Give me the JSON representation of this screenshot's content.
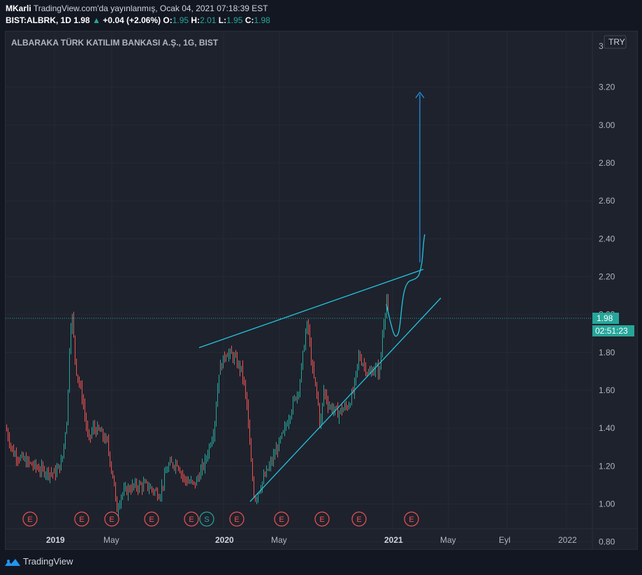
{
  "header": {
    "author": "MKarli",
    "published": "TradingView.com'da yayınlanmış, Ocak 04, 2021 07:18:39 EST",
    "symbol": "BIST:ALBRK, 1D",
    "last": "1.98",
    "change_arrow": "▲",
    "change": "+0.04 (+2.06%)",
    "o_label": "O:",
    "o_value": "1.95",
    "h_label": "H:",
    "h_value": "2.01",
    "l_label": "L:",
    "l_value": "1.95",
    "c_label": "C:",
    "c_value": "1.98"
  },
  "chart": {
    "title": "ALBARAKA TÜRK KATILIM BANKASI A.Ş., 1G, BIST",
    "currency": "TRY",
    "price_tag": "1.98",
    "countdown": "02:51:23",
    "top_tick_partial": "3"
  },
  "chart_data": {
    "type": "candlestick",
    "title": "ALBARAKA TÜRK KATILIM BANKASI A.Ş., 1G, BIST",
    "y_ticks": [
      "3.20",
      "3.00",
      "2.80",
      "2.60",
      "2.40",
      "2.20",
      "2.00",
      "1.80",
      "1.60",
      "1.40",
      "1.20",
      "1.00",
      "0.80"
    ],
    "y_range": [
      0.78,
      3.42
    ],
    "x_ticks": [
      {
        "label": "2019",
        "bold": true
      },
      {
        "label": "May",
        "bold": false
      },
      {
        "label": "2020",
        "bold": true
      },
      {
        "label": "May",
        "bold": false
      },
      {
        "label": "2021",
        "bold": true
      },
      {
        "label": "May",
        "bold": false
      },
      {
        "label": "Eyl",
        "bold": false
      },
      {
        "label": "2022",
        "bold": false
      }
    ],
    "last_price": 1.98,
    "price_path": [
      [
        0,
        1.4
      ],
      [
        10,
        1.27
      ],
      [
        30,
        1.22
      ],
      [
        50,
        1.18
      ],
      [
        70,
        1.16
      ],
      [
        80,
        1.22
      ],
      [
        88,
        1.48
      ],
      [
        92,
        1.94
      ],
      [
        95,
        1.98
      ],
      [
        100,
        1.72
      ],
      [
        110,
        1.55
      ],
      [
        118,
        1.33
      ],
      [
        125,
        1.4
      ],
      [
        135,
        1.38
      ],
      [
        145,
        1.32
      ],
      [
        155,
        1.1
      ],
      [
        158,
        0.96
      ],
      [
        165,
        1.05
      ],
      [
        180,
        1.09
      ],
      [
        200,
        1.1
      ],
      [
        220,
        1.05
      ],
      [
        232,
        1.2
      ],
      [
        245,
        1.22
      ],
      [
        255,
        1.13
      ],
      [
        270,
        1.1
      ],
      [
        285,
        1.22
      ],
      [
        298,
        1.4
      ],
      [
        305,
        1.7
      ],
      [
        315,
        1.8
      ],
      [
        325,
        1.78
      ],
      [
        338,
        1.7
      ],
      [
        345,
        1.52
      ],
      [
        350,
        1.25
      ],
      [
        356,
        1.02
      ],
      [
        365,
        1.1
      ],
      [
        380,
        1.22
      ],
      [
        398,
        1.38
      ],
      [
        410,
        1.52
      ],
      [
        420,
        1.62
      ],
      [
        428,
        1.88
      ],
      [
        432,
        1.96
      ],
      [
        438,
        1.72
      ],
      [
        446,
        1.56
      ],
      [
        450,
        1.4
      ],
      [
        455,
        1.6
      ],
      [
        462,
        1.52
      ],
      [
        475,
        1.48
      ],
      [
        490,
        1.52
      ],
      [
        498,
        1.6
      ],
      [
        505,
        1.78
      ],
      [
        512,
        1.74
      ],
      [
        520,
        1.68
      ],
      [
        528,
        1.72
      ],
      [
        535,
        1.7
      ],
      [
        540,
        1.94
      ],
      [
        545,
        2.08
      ],
      [
        550,
        1.92
      ]
    ],
    "annotations": {
      "upper_trendline": [
        [
          "2019-11-25",
          1.77
        ],
        [
          "2021-04-15",
          2.2
        ]
      ],
      "lower_trendline": [
        [
          "2020-03-23",
          0.95
        ],
        [
          "2021-05-15",
          2.04
        ]
      ],
      "projection": "drop to ~1.84 then rise to ~2.38 and arrow toward ~3.15"
    },
    "event_markers": [
      "E",
      "E",
      "E",
      "E",
      "E",
      "S",
      "E",
      "E",
      "E",
      "E",
      "E"
    ]
  },
  "footer": {
    "brand": "TradingView"
  },
  "colors": {
    "background": "#131722",
    "pane": "#1e222d",
    "up": "#26a69a",
    "down": "#ef5350",
    "drawing": "#22c5dd",
    "arrow": "#2196f3",
    "event_red": "#ef5350",
    "event_green": "#26a69a",
    "price_tag": "#26a69a"
  }
}
